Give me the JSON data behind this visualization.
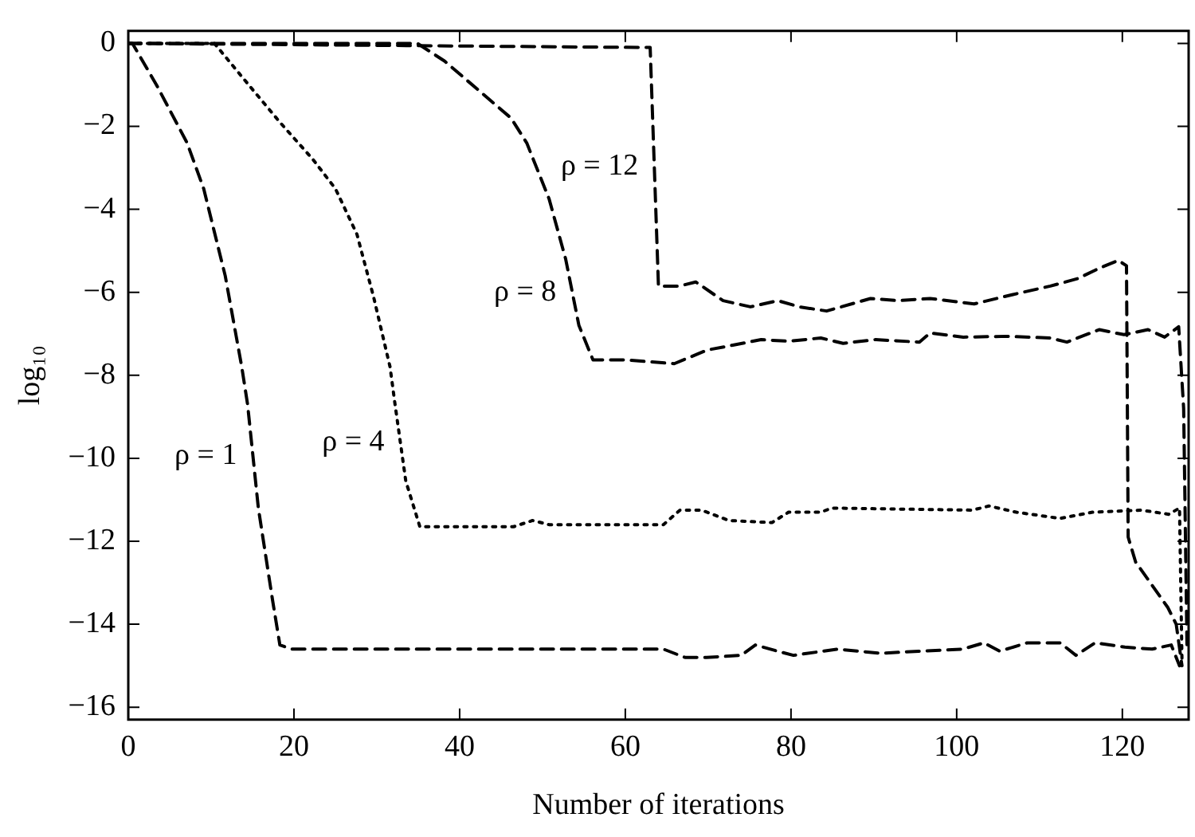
{
  "chart_data": {
    "type": "line",
    "xlabel": "Number of iterations",
    "ylabel": "log₁₀",
    "xlim": [
      0,
      128
    ],
    "ylim": [
      -16.3,
      0.3
    ],
    "xticks": [
      0,
      20,
      40,
      60,
      80,
      100,
      120
    ],
    "yticks": [
      0,
      -2,
      -4,
      -6,
      -8,
      -10,
      -12,
      -14,
      -16
    ],
    "grid": false,
    "legend": false,
    "marker": "none",
    "series": [
      {
        "name": "ρ = 1",
        "color": "#000000",
        "line_style": "dashed",
        "x": [
          0,
          0.5,
          3.4,
          7.1,
          9.1,
          11.7,
          13.7,
          14.4,
          15.7,
          17.4,
          18.3,
          19.7,
          40,
          60,
          64.6,
          67.2,
          69.8,
          74,
          75.7,
          78.4,
          80.3,
          85.6,
          90.8,
          95.4,
          100.7,
          103.3,
          105.2,
          108.5,
          112.5,
          114.4,
          116.7,
          120.3,
          123.6,
          125.9,
          126.9,
          127.5
        ],
        "values": [
          0,
          0,
          -1.0,
          -2.4,
          -3.5,
          -5.6,
          -7.8,
          -8.7,
          -11.2,
          -13.4,
          -14.5,
          -14.6,
          -14.6,
          -14.6,
          -14.6,
          -14.8,
          -14.8,
          -14.75,
          -14.5,
          -14.65,
          -14.75,
          -14.6,
          -14.7,
          -14.65,
          -14.6,
          -14.45,
          -14.65,
          -14.45,
          -14.45,
          -14.75,
          -14.45,
          -14.55,
          -14.6,
          -14.5,
          -15.0,
          -14.8
        ]
      },
      {
        "name": "ρ = 4",
        "color": "#000000",
        "line_style": "dotted",
        "x": [
          0,
          10.4,
          13.7,
          18.3,
          22.3,
          25,
          27.6,
          29.6,
          31.6,
          32.2,
          33.5,
          35.2,
          46.5,
          48.8,
          50.8,
          64.6,
          66.6,
          69.2,
          72.5,
          77.7,
          79.7,
          83.6,
          84.9,
          101.9,
          103.9,
          107.2,
          112.5,
          116.4,
          122.3,
          125.6,
          126.9,
          127.2
        ],
        "values": [
          0,
          0,
          -0.8,
          -1.9,
          -2.8,
          -3.5,
          -4.6,
          -6.1,
          -7.8,
          -8.7,
          -10.55,
          -11.65,
          -11.65,
          -11.5,
          -11.6,
          -11.6,
          -11.25,
          -11.25,
          -11.5,
          -11.55,
          -11.3,
          -11.3,
          -11.2,
          -11.25,
          -11.15,
          -11.3,
          -11.45,
          -11.3,
          -11.25,
          -11.35,
          -11.2,
          -14.9
        ]
      },
      {
        "name": "ρ = 8",
        "color": "#000000",
        "line_style": "dashed",
        "x": [
          0,
          34.9,
          38.2,
          46.2,
          48.1,
          50.8,
          52.8,
          54.4,
          56.1,
          60,
          65.9,
          69.9,
          73.1,
          76.4,
          79.7,
          83.6,
          86.3,
          90.2,
          95.5,
          96.8,
          100.8,
          106,
          111.3,
          113.3,
          117.2,
          120.2,
          123.1,
          125.1,
          126.8,
          127.4,
          127.8
        ],
        "values": [
          0,
          0,
          -0.43,
          -1.8,
          -2.4,
          -3.75,
          -5.2,
          -6.8,
          -7.63,
          -7.63,
          -7.72,
          -7.39,
          -7.27,
          -7.14,
          -7.18,
          -7.1,
          -7.23,
          -7.14,
          -7.2,
          -6.98,
          -7.08,
          -7.06,
          -7.1,
          -7.2,
          -6.9,
          -7.02,
          -6.9,
          -7.08,
          -6.83,
          -8.8,
          -14.5
        ]
      },
      {
        "name": "ρ = 12",
        "color": "#000000",
        "line_style": "dashed",
        "x": [
          0,
          63,
          64,
          66.5,
          68.5,
          71.8,
          75.1,
          78.4,
          81,
          84.3,
          89.6,
          92.9,
          96.8,
          102.1,
          107.3,
          111.3,
          114.6,
          117.2,
          119.5,
          120.5,
          120.7,
          121.6,
          125.5,
          126.5,
          127.2
        ],
        "values": [
          0,
          -0.1,
          -5.85,
          -5.85,
          -5.75,
          -6.2,
          -6.35,
          -6.2,
          -6.35,
          -6.45,
          -6.15,
          -6.2,
          -6.15,
          -6.28,
          -6.03,
          -5.85,
          -5.67,
          -5.42,
          -5.23,
          -5.36,
          -11.9,
          -12.5,
          -13.6,
          -14.0,
          -15.0
        ]
      }
    ]
  }
}
